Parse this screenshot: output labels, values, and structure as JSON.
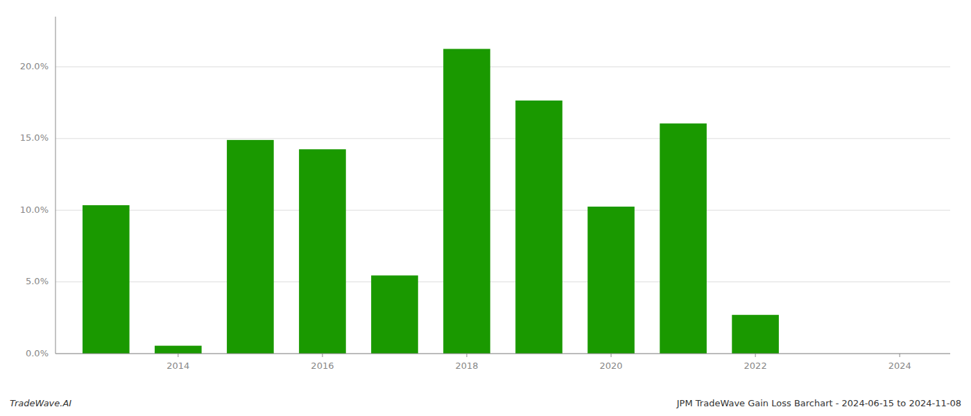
{
  "chart_data": {
    "type": "bar",
    "title": "JPM TradeWave Gain Loss Barchart - 2024-06-15 to 2024-11-08",
    "annotations": [
      "TradeWave.AI"
    ],
    "x": [
      2013,
      2014,
      2015,
      2016,
      2017,
      2018,
      2019,
      2020,
      2021,
      2022
    ],
    "values": [
      0.1035,
      0.0055,
      0.149,
      0.1425,
      0.0545,
      0.2125,
      0.1765,
      0.1025,
      0.1605,
      0.027
    ],
    "color": "#1a9900",
    "xlim": [
      2012.3,
      2024.7
    ],
    "xticks": [
      2014,
      2016,
      2018,
      2020,
      2022,
      2024
    ],
    "ylim": [
      0,
      0.235
    ],
    "yticks": [
      {
        "value": 0.0,
        "label": "0.0%"
      },
      {
        "value": 0.05,
        "label": "5.0%"
      },
      {
        "value": 0.1,
        "label": "10.0%"
      },
      {
        "value": 0.15,
        "label": "15.0%"
      },
      {
        "value": 0.2,
        "label": "20.0%"
      }
    ],
    "grid": true
  }
}
